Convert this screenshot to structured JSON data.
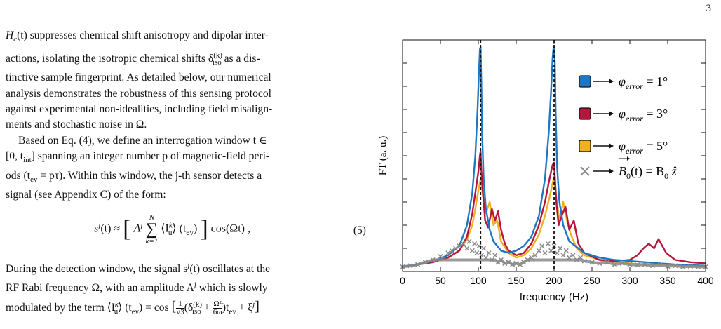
{
  "page_number": "3",
  "paragraph1": {
    "line1": "H",
    "line1_sub": "c",
    "line1_rest": "(t) suppresses chemical shift anisotropy and dipolar inter-",
    "line2": "actions, isolating the isotropic chemical shifts δ",
    "line2_sup": "(k)",
    "line2_sub": "iso",
    "line2_rest": " as a dis-",
    "line3": "tinctive sample fingerprint. As detailed below, our numerical",
    "line4": "analysis demonstrates the robustness of this sensing protocol",
    "line5": "against experimental non-idealities, including field misalign-",
    "line6": "ments and stochastic noise in Ω."
  },
  "paragraph2": {
    "line1": "Based on Eq. (4), we define an interrogation window t ∈",
    "line2": "[0, t",
    "line2_sub": "int",
    "line2_rest": "] spanning an integer number p of magnetic-field peri-",
    "line3": "ods (t",
    "line3_sub": "ev",
    "line3_rest": " = pτ). Within this window, the j-th sensor detects a",
    "line4": "signal (see Appendix C) of the form:"
  },
  "equation": {
    "lhs": "s",
    "lhs_sup": "j",
    "lhs_rest": "(t) ≈",
    "bracket_open": "[",
    "amp": "A",
    "amp_sup": "j",
    "sum_top": "N",
    "sum_symbol": "∑",
    "sum_bottom": "k=1",
    "term": "⟨I",
    "term_sup": "k",
    "term_sub": "u",
    "term_rest": "⟩ (t",
    "term_sub2": "ev",
    "term_close": ")",
    "bracket_close": "]",
    "cos": "cos(Ωt) ,",
    "number": "(5)"
  },
  "paragraph3": {
    "line1_a": "During the detection window, the signal s",
    "line1_sup": "j",
    "line1_b": "(t) oscillates at the",
    "line2": "RF Rabi frequency Ω, with an amplitude A",
    "line2_sup": "j",
    "line2_rest": " which is slowly",
    "line3_a": "modulated by the term ⟨I",
    "line3_sup": "k",
    "line3_sub": "u",
    "line3_b": "⟩ (t",
    "line3_sub2": "ev",
    "line3_c": ") = cos",
    "frac1_num": "1",
    "frac1_den": "√3",
    "line3_d": "(δ",
    "line3_sup2": "(k)",
    "line3_sub3": "iso",
    "line3_e": " +",
    "frac2_num": "Ω²",
    "frac2_den": "6ω",
    "line3_f": ")t",
    "line3_sub4": "ev",
    "line3_g": " + ξ",
    "line3_sup3": "j",
    "line3_h": "]"
  },
  "chart_data": {
    "type": "line",
    "title": "",
    "xlabel": "frequency (Hz)",
    "ylabel": "FT (a. u.)",
    "xlim": [
      0,
      400
    ],
    "ylim": [
      0,
      1
    ],
    "xticks": [
      "0",
      "50",
      "100",
      "150",
      "200",
      "250",
      "300",
      "350",
      "400"
    ],
    "grid": false,
    "legend_placement": "top-right",
    "vlines": [
      103,
      200
    ],
    "series": [
      {
        "name": "φerror = 1°",
        "legend_sym": "φ",
        "legend_sub": "error",
        "legend_rest": " = 1°",
        "color": "#1f77c4",
        "x": [
          0,
          20,
          40,
          60,
          75,
          85,
          92,
          96,
          99,
          101,
          102,
          103,
          104,
          105,
          107,
          110,
          115,
          120,
          130,
          140,
          150,
          160,
          170,
          180,
          188,
          193,
          196,
          198,
          199,
          200,
          201,
          202,
          204,
          207,
          212,
          220,
          240,
          260,
          280,
          300,
          320,
          340,
          360,
          380,
          400
        ],
        "y": [
          0.02,
          0.03,
          0.045,
          0.07,
          0.11,
          0.2,
          0.34,
          0.5,
          0.7,
          0.88,
          0.96,
          0.97,
          0.82,
          0.6,
          0.4,
          0.27,
          0.18,
          0.13,
          0.09,
          0.08,
          0.09,
          0.11,
          0.15,
          0.24,
          0.4,
          0.6,
          0.78,
          0.92,
          0.96,
          0.97,
          0.9,
          0.7,
          0.45,
          0.3,
          0.2,
          0.13,
          0.08,
          0.06,
          0.05,
          0.045,
          0.04,
          0.035,
          0.03,
          0.028,
          0.025
        ]
      },
      {
        "name": "φerror = 3°",
        "legend_sym": "φ",
        "legend_sub": "error",
        "legend_rest": " = 3°",
        "color": "#b5173a",
        "x": [
          0,
          20,
          40,
          60,
          75,
          85,
          92,
          96,
          100,
          102,
          103,
          104,
          106,
          109,
          113,
          118,
          122,
          126,
          130,
          135,
          140,
          150,
          160,
          170,
          180,
          188,
          194,
          198,
          200,
          201,
          203,
          206,
          210,
          215,
          220,
          226,
          232,
          240,
          260,
          280,
          300,
          310,
          318,
          325,
          332,
          338,
          343,
          348,
          360,
          380,
          400
        ],
        "y": [
          0.02,
          0.03,
          0.04,
          0.06,
          0.09,
          0.15,
          0.25,
          0.34,
          0.43,
          0.5,
          0.52,
          0.44,
          0.34,
          0.22,
          0.19,
          0.27,
          0.22,
          0.26,
          0.18,
          0.12,
          0.09,
          0.07,
          0.08,
          0.12,
          0.2,
          0.3,
          0.4,
          0.46,
          0.47,
          0.41,
          0.3,
          0.2,
          0.24,
          0.28,
          0.18,
          0.22,
          0.12,
          0.08,
          0.05,
          0.045,
          0.05,
          0.07,
          0.1,
          0.12,
          0.1,
          0.14,
          0.11,
          0.08,
          0.05,
          0.04,
          0.035
        ]
      },
      {
        "name": "φerror = 5°",
        "legend_sym": "φ",
        "legend_sub": "error",
        "legend_rest": " = 5°",
        "color": "#f0b020",
        "x": [
          0,
          20,
          40,
          60,
          75,
          85,
          92,
          96,
          100,
          103,
          106,
          110,
          115,
          120,
          125,
          130,
          140,
          150,
          160,
          170,
          180,
          188,
          194,
          198,
          200,
          203,
          207,
          212,
          217,
          222,
          230,
          240,
          260,
          280,
          300,
          320,
          340,
          360,
          380,
          400
        ],
        "y": [
          0.02,
          0.03,
          0.04,
          0.06,
          0.09,
          0.14,
          0.2,
          0.27,
          0.35,
          0.4,
          0.33,
          0.25,
          0.3,
          0.2,
          0.22,
          0.13,
          0.08,
          0.06,
          0.07,
          0.1,
          0.16,
          0.24,
          0.32,
          0.38,
          0.41,
          0.32,
          0.22,
          0.3,
          0.22,
          0.16,
          0.1,
          0.07,
          0.05,
          0.04,
          0.035,
          0.03,
          0.03,
          0.028,
          0.025,
          0.022
        ]
      },
      {
        "name": "B0(t) = B0 ẑ",
        "legend_sym": "B",
        "legend_sub": "0",
        "legend_rest": "(t) = B",
        "legend_sub2": "0",
        "legend_end": " ẑ",
        "color": "#8a8a8a",
        "marker": "x",
        "x": [
          0,
          10,
          20,
          30,
          40,
          50,
          60,
          65,
          70,
          75,
          80,
          85,
          88,
          92,
          95,
          98,
          101,
          104,
          107,
          110,
          114,
          118,
          122,
          126,
          130,
          135,
          140,
          145,
          150,
          155,
          160,
          165,
          170,
          175,
          180,
          184,
          188,
          192,
          196,
          200,
          204,
          208,
          212,
          216,
          220,
          225,
          230,
          235,
          240,
          250,
          260,
          270,
          280,
          290,
          300,
          310,
          320,
          330,
          340,
          350,
          360,
          370,
          380,
          390,
          400
        ],
        "y": [
          0.02,
          0.025,
          0.03,
          0.04,
          0.05,
          0.065,
          0.08,
          0.09,
          0.1,
          0.11,
          0.12,
          0.1,
          0.13,
          0.09,
          0.12,
          0.08,
          0.11,
          0.07,
          0.1,
          0.06,
          0.08,
          0.05,
          0.07,
          0.04,
          0.05,
          0.035,
          0.04,
          0.03,
          0.035,
          0.03,
          0.04,
          0.05,
          0.06,
          0.07,
          0.09,
          0.11,
          0.08,
          0.12,
          0.09,
          0.11,
          0.08,
          0.1,
          0.07,
          0.09,
          0.06,
          0.07,
          0.05,
          0.06,
          0.045,
          0.04,
          0.035,
          0.04,
          0.03,
          0.035,
          0.03,
          0.028,
          0.03,
          0.025,
          0.028,
          0.022,
          0.025,
          0.02,
          0.022,
          0.02,
          0.02
        ]
      }
    ]
  }
}
